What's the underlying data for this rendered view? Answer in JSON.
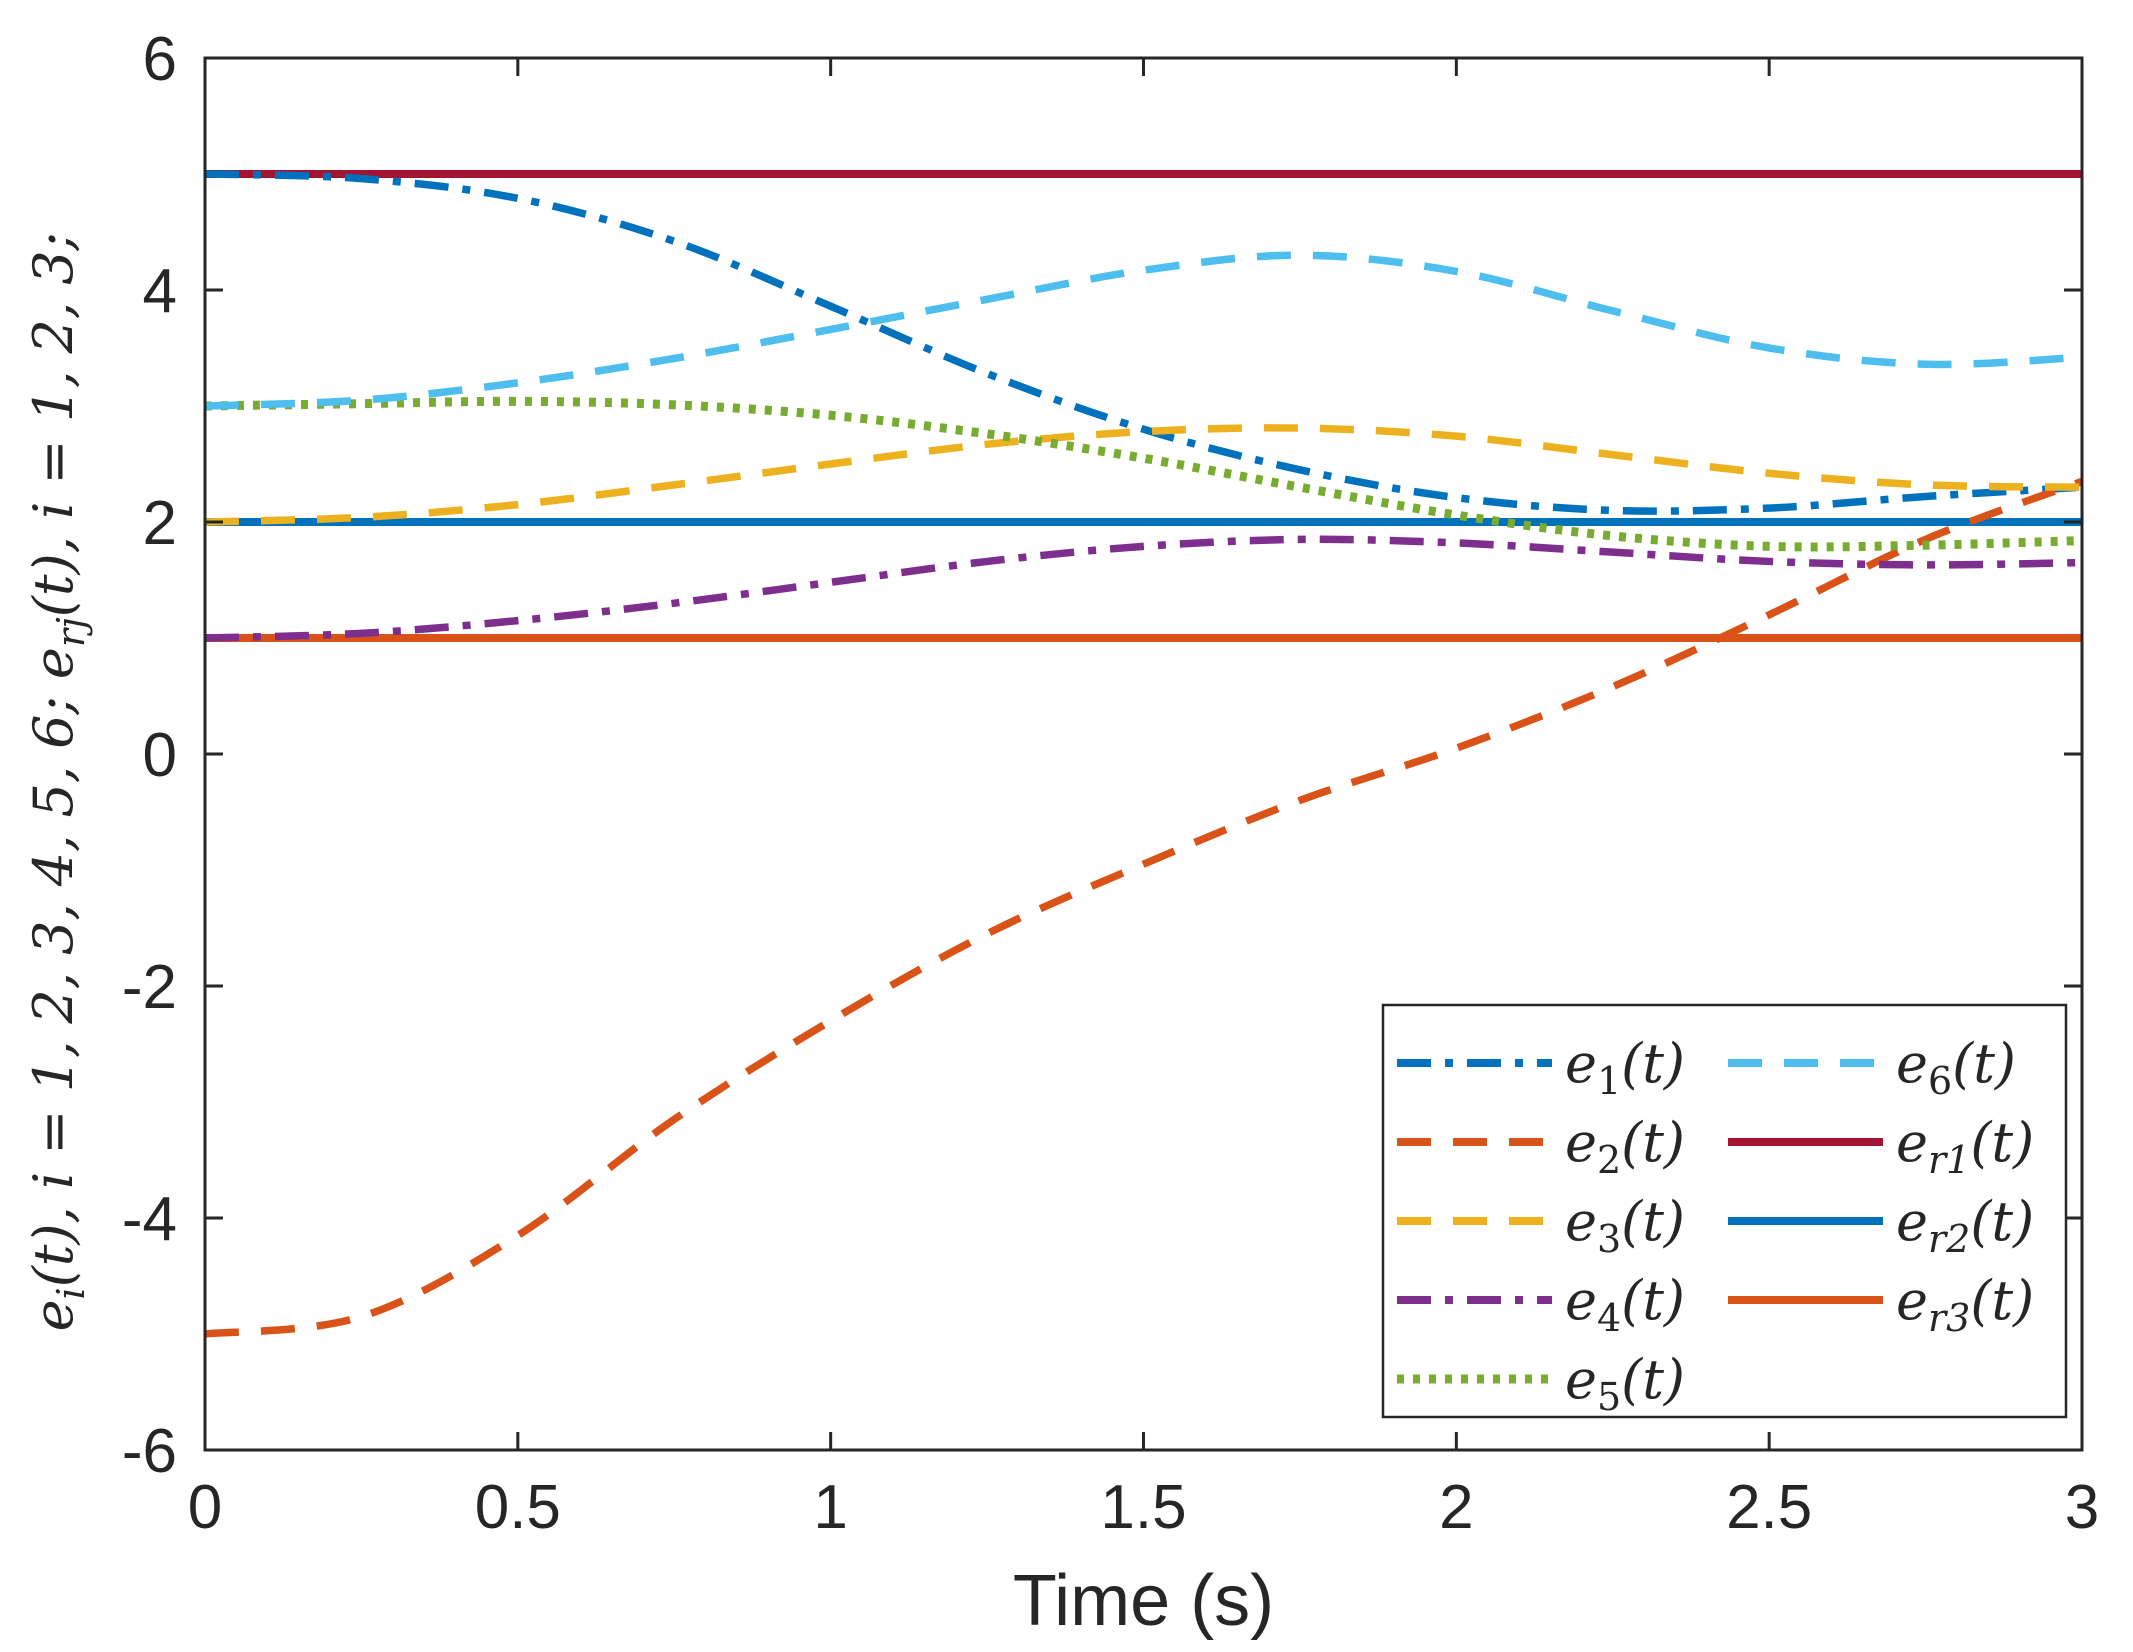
{
  "chart_data": {
    "type": "line",
    "title": "",
    "xlabel": "Time (s)",
    "ylabel_parts": {
      "e": "e",
      "sub_i": "i",
      "mid1": "(t), ",
      "i": "i",
      "mid2": " = 1, 2, 3, 4, 5, 6; ",
      "sub_rj": "rj",
      "mid3": "(t), ",
      "mid4": " = 1, 2, 3;"
    },
    "xlim": [
      0,
      3
    ],
    "ylim": [
      -6,
      6
    ],
    "xticks": [
      0,
      0.5,
      1,
      1.5,
      2,
      2.5,
      3
    ],
    "xtick_labels": [
      "0",
      "0.5",
      "1",
      "1.5",
      "2",
      "2.5",
      "3"
    ],
    "yticks": [
      -6,
      -4,
      -2,
      0,
      2,
      4,
      6
    ],
    "ytick_labels": [
      "-6",
      "-4",
      "-2",
      "0",
      "2",
      "4",
      "6"
    ],
    "grid": false,
    "legend_location": "bottom-right",
    "series": [
      {
        "name": "e1(t)",
        "label_base": "e",
        "label_sub": "1",
        "label_arg": "(t)",
        "color": "#0072BD",
        "style": "dashdot",
        "x": [
          0,
          0.25,
          0.5,
          0.75,
          1.0,
          1.25,
          1.5,
          1.75,
          2.0,
          2.25,
          2.5,
          2.75,
          3.0
        ],
        "y": [
          5.0,
          4.96,
          4.79,
          4.42,
          3.86,
          3.28,
          2.8,
          2.45,
          2.21,
          2.1,
          2.12,
          2.22,
          2.3
        ]
      },
      {
        "name": "e2(t)",
        "label_base": "e",
        "label_sub": "2",
        "label_arg": "(t)",
        "color": "#D95319",
        "style": "dashed",
        "x": [
          0,
          0.25,
          0.5,
          0.75,
          1.0,
          1.25,
          1.5,
          1.75,
          2.0,
          2.25,
          2.5,
          2.75,
          3.0
        ],
        "y": [
          -5.0,
          -4.85,
          -4.15,
          -3.15,
          -2.3,
          -1.55,
          -0.95,
          -0.4,
          0.05,
          0.58,
          1.2,
          1.85,
          2.35
        ]
      },
      {
        "name": "e3(t)",
        "label_base": "e",
        "label_sub": "3",
        "label_arg": "(t)",
        "color": "#EDB120",
        "style": "dashed",
        "x": [
          0,
          0.25,
          0.5,
          0.75,
          1.0,
          1.25,
          1.5,
          1.75,
          2.0,
          2.25,
          2.5,
          2.75,
          3.0
        ],
        "y": [
          2.0,
          2.04,
          2.15,
          2.32,
          2.5,
          2.67,
          2.78,
          2.81,
          2.74,
          2.58,
          2.42,
          2.32,
          2.3
        ]
      },
      {
        "name": "e4(t)",
        "label_base": "e",
        "label_sub": "4",
        "label_arg": "(t)",
        "color": "#7E2F8E",
        "style": "dashdot",
        "x": [
          0,
          0.25,
          0.5,
          0.75,
          1.0,
          1.25,
          1.5,
          1.75,
          2.0,
          2.25,
          2.5,
          2.75,
          3.0
        ],
        "y": [
          1.0,
          1.04,
          1.15,
          1.3,
          1.48,
          1.66,
          1.79,
          1.85,
          1.82,
          1.74,
          1.66,
          1.63,
          1.65
        ]
      },
      {
        "name": "e5(t)",
        "label_base": "e",
        "label_sub": "5",
        "label_arg": "(t)",
        "color": "#77AC30",
        "style": "dotted",
        "x": [
          0,
          0.25,
          0.5,
          0.75,
          1.0,
          1.25,
          1.5,
          1.75,
          2.0,
          2.25,
          2.5,
          2.75,
          3.0
        ],
        "y": [
          3.0,
          3.02,
          3.04,
          3.01,
          2.92,
          2.76,
          2.55,
          2.3,
          2.06,
          1.88,
          1.79,
          1.8,
          1.84
        ]
      },
      {
        "name": "e6(t)",
        "label_base": "e",
        "label_sub": "6",
        "label_arg": "(t)",
        "color": "#4DBEEE",
        "style": "dashed",
        "x": [
          0,
          0.25,
          0.5,
          0.75,
          1.0,
          1.25,
          1.5,
          1.75,
          2.0,
          2.25,
          2.5,
          2.75,
          3.0
        ],
        "y": [
          3.0,
          3.05,
          3.2,
          3.41,
          3.66,
          3.92,
          4.17,
          4.3,
          4.16,
          3.82,
          3.5,
          3.36,
          3.42
        ]
      },
      {
        "name": "er1(t)",
        "label_base": "e",
        "label_sub": "r1",
        "label_arg": "(t)",
        "color": "#A2142F",
        "style": "solid",
        "x": [
          0,
          3
        ],
        "y": [
          5.0,
          5.0
        ]
      },
      {
        "name": "er2(t)",
        "label_base": "e",
        "label_sub": "r2",
        "label_arg": "(t)",
        "color": "#0072BD",
        "style": "solid",
        "x": [
          0,
          3
        ],
        "y": [
          2.0,
          2.0
        ]
      },
      {
        "name": "er3(t)",
        "label_base": "e",
        "label_sub": "r3",
        "label_arg": "(t)",
        "color": "#D95319",
        "style": "solid",
        "x": [
          0,
          3
        ],
        "y": [
          1.0,
          1.0
        ]
      }
    ]
  }
}
